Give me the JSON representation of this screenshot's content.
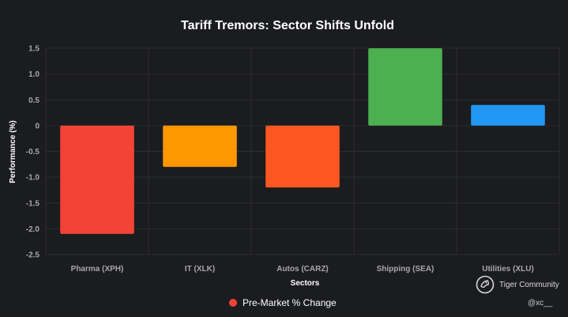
{
  "chart_data": {
    "type": "bar",
    "title": "Tariff Tremors: Sector Shifts Unfold",
    "xlabel": "Sectors",
    "ylabel": "Performance (%)",
    "categories": [
      "Pharma (XPH)",
      "IT (XLK)",
      "Autos (CARZ)",
      "Shipping (SEA)",
      "Utilities (XLU)"
    ],
    "series": [
      {
        "name": "Pre-Market % Change",
        "values": [
          -2.1,
          -0.8,
          -1.2,
          1.5,
          0.4
        ],
        "colors": [
          "#f44336",
          "#ff9800",
          "#ff5722",
          "#4caf50",
          "#2196f3"
        ]
      }
    ],
    "ylim": [
      -2.5,
      1.5
    ],
    "yticks": [
      1.5,
      1.0,
      0.5,
      0,
      -0.5,
      -1.0,
      -1.5,
      -2.0,
      -2.5
    ],
    "ytick_labels": [
      "1.5",
      "1.0",
      "0.5",
      "0",
      "-0.5",
      "-1.0",
      "-1.5",
      "-2.0",
      "-2.5"
    ],
    "grid": true,
    "legend": "bottom-center",
    "legend_color": "#f44336"
  },
  "watermark": {
    "community": "Tiger Community",
    "user": "@xc__"
  },
  "colors": {
    "background": "#1b1c1f",
    "grid": "#2c2d31",
    "title": "#ffffff",
    "ticks": "#a8a8a8",
    "axis_label": "#ffffff"
  }
}
